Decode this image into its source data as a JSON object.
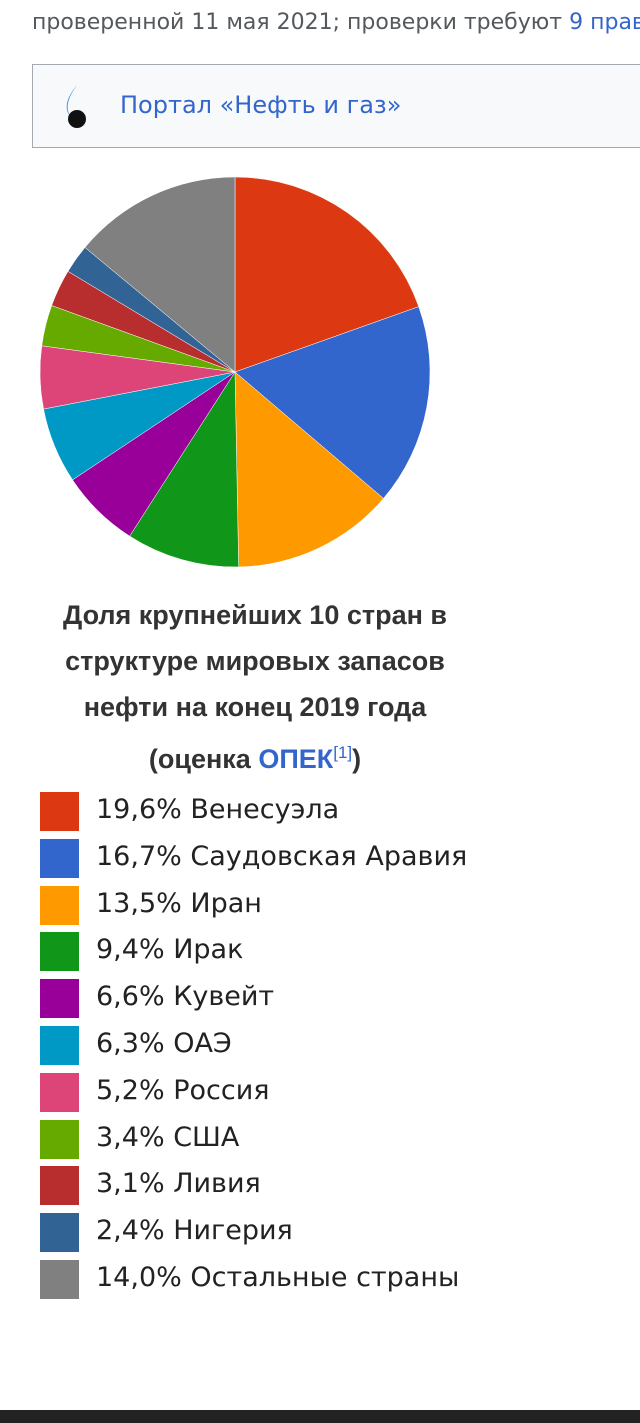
{
  "header": {
    "text": "проверенной 11 мая 2021; проверки требуют",
    "link": "9 прав"
  },
  "portal": {
    "link": "Портал «Нефть и газ»"
  },
  "chart_data": {
    "type": "pie",
    "title": "Доля крупнейших 10 стран в структуре мировых запасов нефти на конец 2019 года (оценка",
    "title_link": "ОПЕК",
    "title_ref": "[1]",
    "title_suffix": ")",
    "categories": [
      "Венесуэла",
      "Саудовская Аравия",
      "Иран",
      "Ирак",
      "Кувейт",
      "ОАЭ",
      "Россия",
      "США",
      "Ливия",
      "Нигерия",
      "Остальные страны"
    ],
    "values": [
      19.6,
      16.7,
      13.5,
      9.4,
      6.6,
      6.3,
      5.2,
      3.4,
      3.1,
      2.4,
      14.0
    ],
    "value_labels": [
      "19,6%",
      "16,7%",
      "13,5%",
      "9,4%",
      "6,6%",
      "6,3%",
      "5,2%",
      "3,4%",
      "3,1%",
      "2,4%",
      "14,0%"
    ],
    "colors": [
      "#dc3912",
      "#3366cc",
      "#ff9900",
      "#109618",
      "#990099",
      "#0099c6",
      "#dd4477",
      "#66aa00",
      "#b82e2e",
      "#316395",
      "#808080"
    ]
  }
}
